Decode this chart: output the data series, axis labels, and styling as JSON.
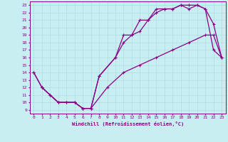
{
  "xlabel": "Windchill (Refroidissement éolien,°C)",
  "xlim": [
    -0.5,
    23.5
  ],
  "ylim": [
    8.5,
    23.5
  ],
  "xticks": [
    0,
    1,
    2,
    3,
    4,
    5,
    6,
    7,
    8,
    9,
    10,
    11,
    12,
    13,
    14,
    15,
    16,
    17,
    18,
    19,
    20,
    21,
    22,
    23
  ],
  "yticks": [
    9,
    10,
    11,
    12,
    13,
    14,
    15,
    16,
    17,
    18,
    19,
    20,
    21,
    22,
    23
  ],
  "background_color": "#c9eef1",
  "grid_color": "#b0dde0",
  "line_color": "#880088",
  "line1_x": [
    0,
    1,
    2,
    3,
    4,
    5,
    6,
    7,
    8,
    10,
    11,
    12,
    13,
    14,
    15,
    16,
    17,
    18,
    19,
    20,
    21,
    22,
    23
  ],
  "line1_y": [
    14,
    12,
    11,
    10,
    10,
    10,
    9.2,
    9.2,
    13.5,
    16,
    19,
    19,
    21,
    21,
    22.5,
    22.5,
    22.5,
    23,
    23,
    23,
    22.5,
    20.5,
    16
  ],
  "line2_x": [
    1,
    2,
    3,
    4,
    5,
    6,
    7,
    8,
    10,
    11,
    12,
    13,
    14,
    15,
    16,
    17,
    18,
    19,
    20,
    21,
    22,
    23
  ],
  "line2_y": [
    12,
    11,
    10,
    10,
    10,
    9.2,
    9.2,
    13.5,
    16,
    18,
    19,
    19.5,
    21,
    22,
    22.5,
    22.5,
    23,
    22.5,
    23,
    22.5,
    17,
    16
  ],
  "line3_x": [
    0,
    1,
    3,
    5,
    6,
    7,
    9,
    11,
    13,
    15,
    17,
    19,
    21,
    22,
    23
  ],
  "line3_y": [
    14,
    12,
    10,
    10,
    9.2,
    9.2,
    12,
    14,
    15,
    16,
    17,
    18,
    19,
    19,
    16
  ]
}
